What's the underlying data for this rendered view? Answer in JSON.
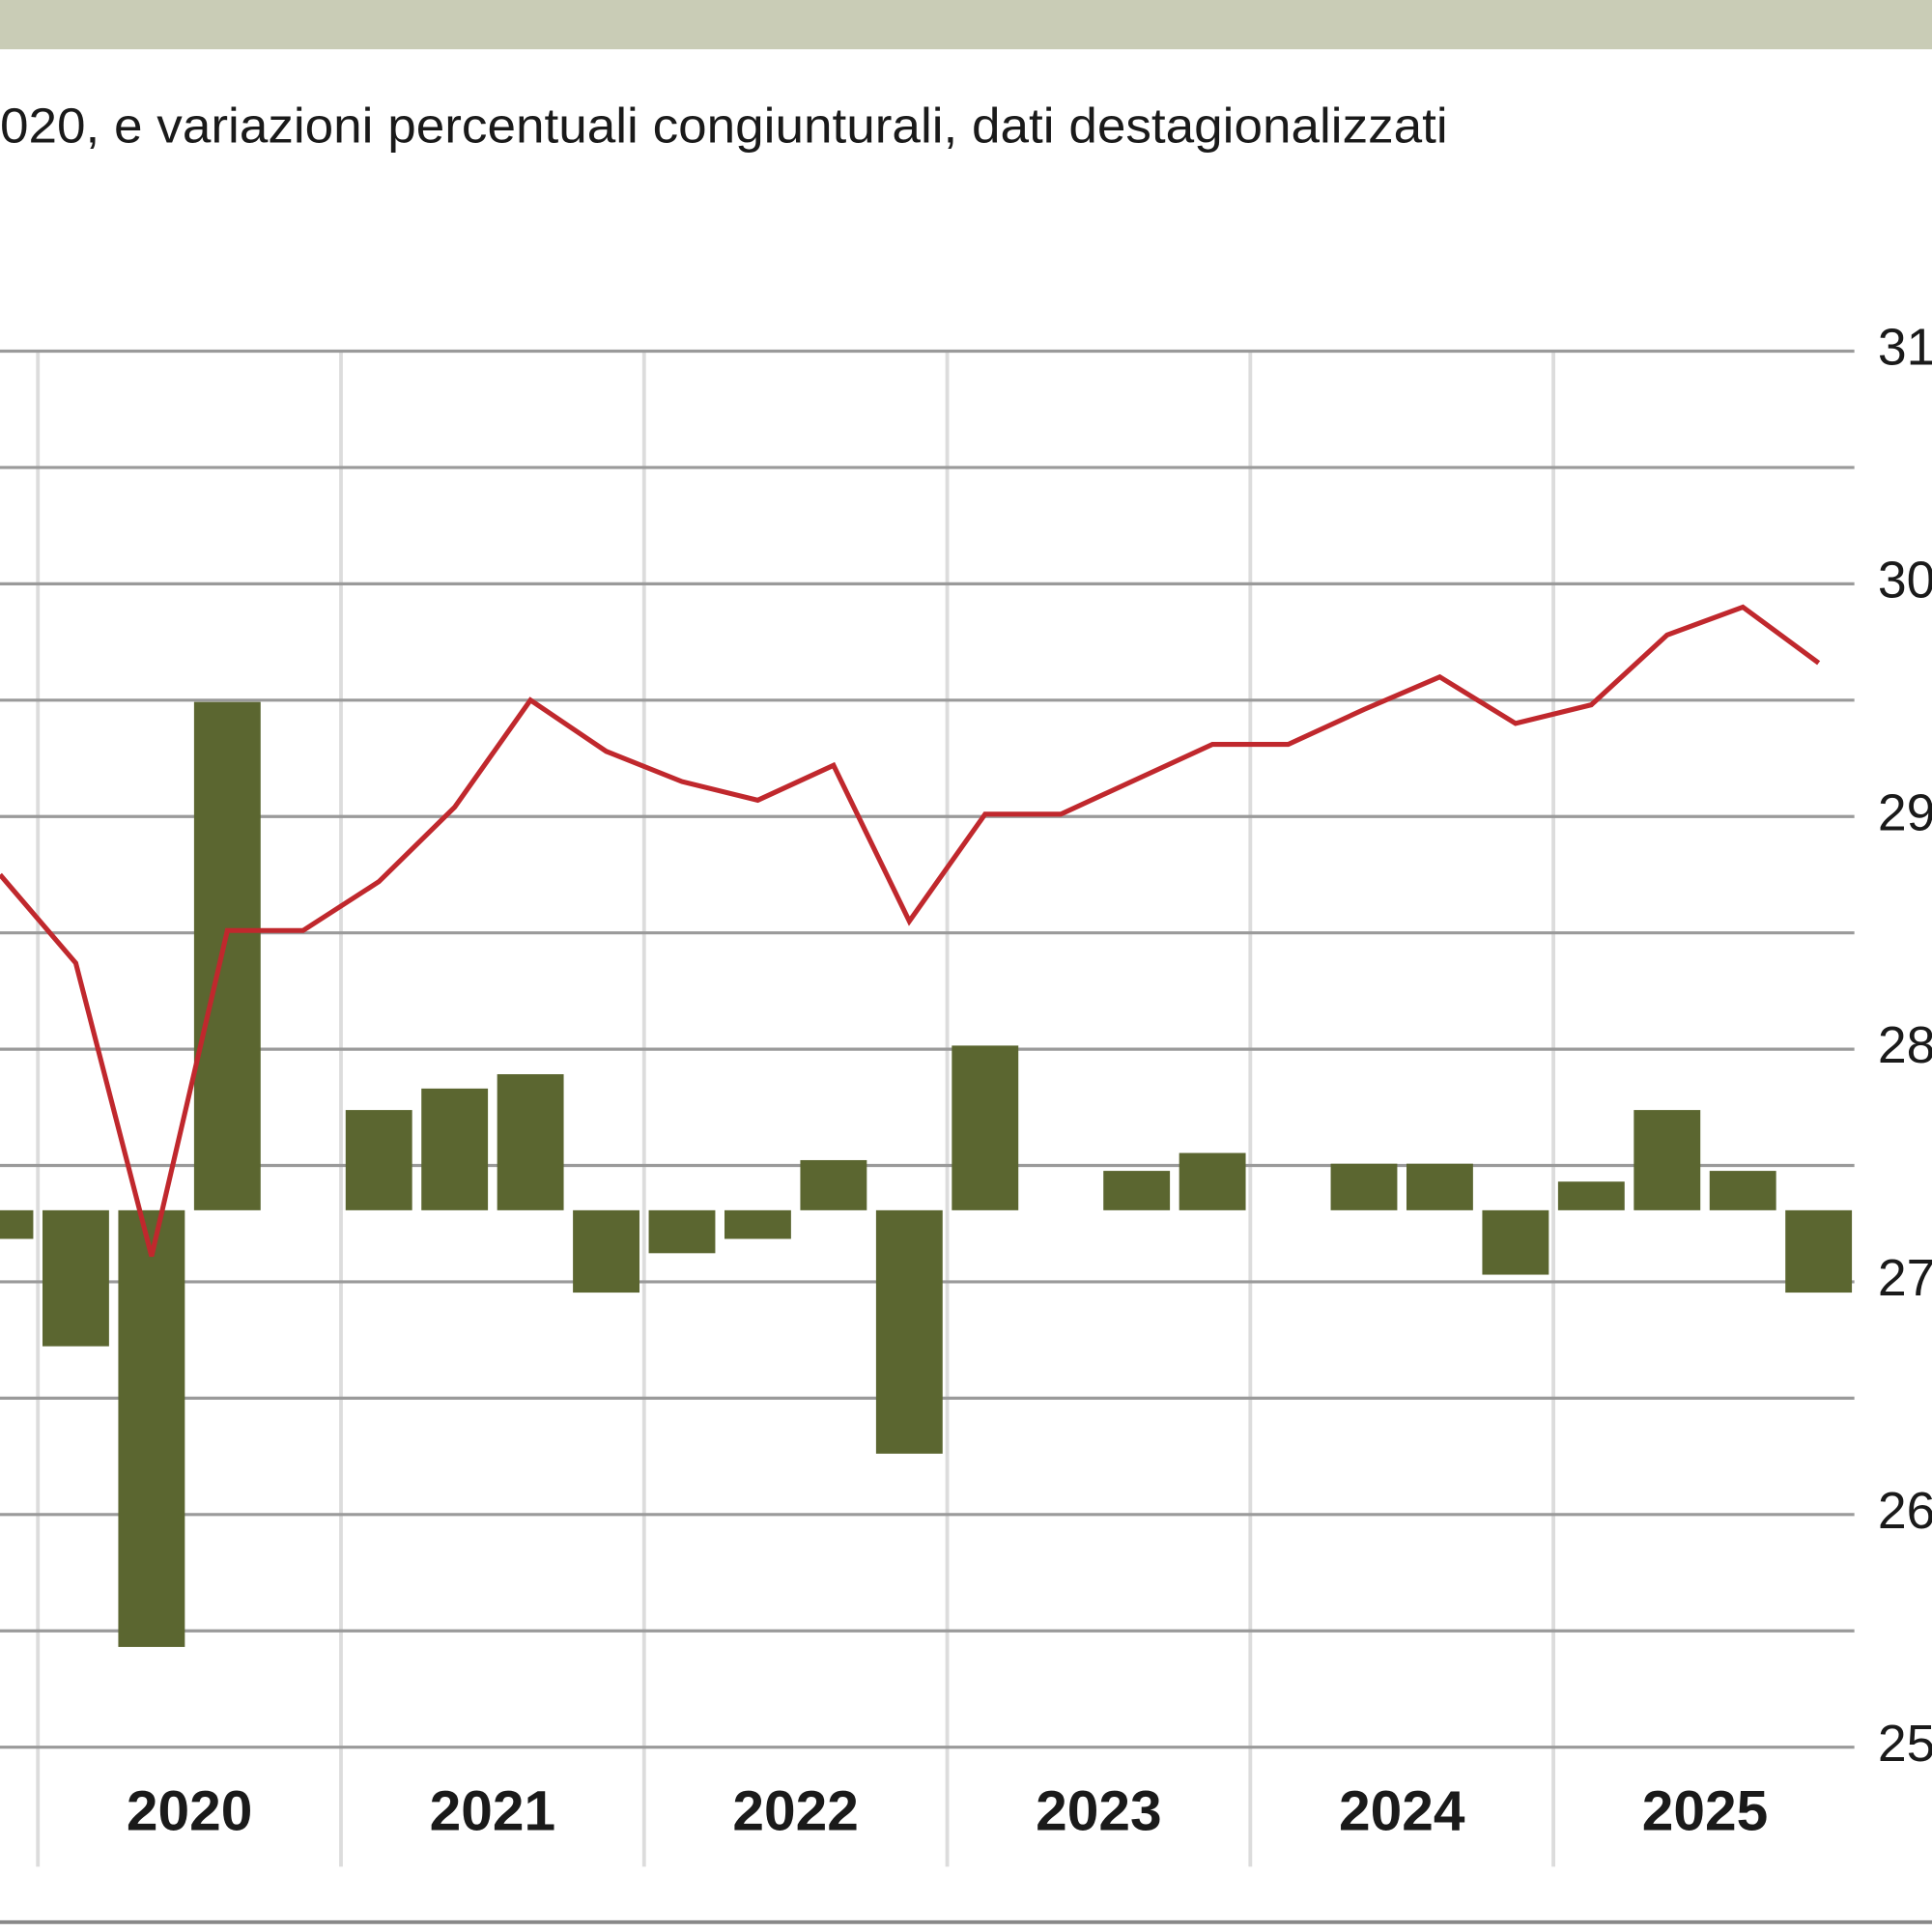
{
  "chart_data": {
    "type": "bar-line",
    "subtitle": "020, e variazioni percentuali congiunturali, dati destagionalizzati",
    "categories": [
      null,
      null,
      null,
      null,
      null,
      null,
      null,
      null,
      null,
      null,
      null,
      null,
      null,
      null,
      null,
      null,
      null,
      null,
      null,
      null,
      null,
      null,
      null,
      null,
      null
    ],
    "years": [
      "2020",
      "2021",
      "2022",
      "2023",
      "2024",
      "2025"
    ],
    "series": [
      {
        "type": "bar",
        "color": "#5b6630",
        "values": [
          -0.8,
          -3.8,
          -12.2,
          14.2,
          0,
          2.8,
          3.4,
          3.8,
          -2.3,
          -1.2,
          -0.8,
          1.4,
          -6.8,
          4.6,
          0,
          1.1,
          1.6,
          0,
          1.3,
          1.3,
          -1.8,
          0.8,
          2.8,
          1.1,
          -2.3
        ]
      },
      {
        "type": "line",
        "color": "#c0282d",
        "axis": "y2",
        "values": [
          28.75,
          28.37,
          27.11,
          28.51,
          28.51,
          28.72,
          29.04,
          29.5,
          29.28,
          29.15,
          29.07,
          29.22,
          28.55,
          29.01,
          29.01,
          29.16,
          29.31,
          29.31,
          29.46,
          29.6,
          29.4,
          29.48,
          29.78,
          29.9,
          29.66
        ]
      }
    ],
    "ylim": [
      -15,
      24
    ],
    "y2lim": [
      25,
      31
    ],
    "y2ticks": [
      25,
      26,
      27,
      28,
      29,
      30,
      31
    ],
    "grid": true
  }
}
